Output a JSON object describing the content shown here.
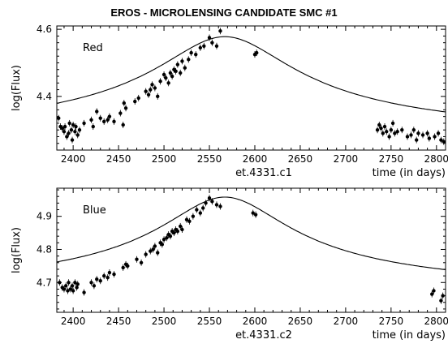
{
  "title": "EROS  -  MICROLENSING CANDIDATE SMC #1",
  "chart_data": [
    {
      "type": "scatter",
      "panel_label": "Red",
      "subtitle": "et.4331.c1",
      "xlabel": "time (in days)",
      "ylabel": "log(Flux)",
      "xlim": [
        2382,
        2810
      ],
      "ylim": [
        4.24,
        4.61
      ],
      "x_ticks": [
        2400,
        2450,
        2500,
        2550,
        2600,
        2650,
        2700,
        2750,
        2800
      ],
      "y_ticks": [
        4.4,
        4.6
      ],
      "y_tick_labels": [
        "4.4",
        "4.6"
      ],
      "model": {
        "t0": 2567,
        "peak": 4.578,
        "base": 4.26,
        "tau": 75
      },
      "points": [
        [
          2384,
          4.335
        ],
        [
          2386,
          4.31
        ],
        [
          2388,
          4.305
        ],
        [
          2390,
          4.295
        ],
        [
          2391,
          4.31
        ],
        [
          2393,
          4.28
        ],
        [
          2395,
          4.29
        ],
        [
          2396,
          4.32
        ],
        [
          2398,
          4.3
        ],
        [
          2399,
          4.27
        ],
        [
          2400,
          4.315
        ],
        [
          2402,
          4.295
        ],
        [
          2403,
          4.31
        ],
        [
          2405,
          4.285
        ],
        [
          2407,
          4.3
        ],
        [
          2412,
          4.32
        ],
        [
          2420,
          4.33
        ],
        [
          2422,
          4.31
        ],
        [
          2426,
          4.355
        ],
        [
          2430,
          4.335
        ],
        [
          2434,
          4.325
        ],
        [
          2438,
          4.33
        ],
        [
          2440,
          4.34
        ],
        [
          2445,
          4.325
        ],
        [
          2452,
          4.35
        ],
        [
          2455,
          4.315
        ],
        [
          2456,
          4.38
        ],
        [
          2458,
          4.365
        ],
        [
          2468,
          4.385
        ],
        [
          2472,
          4.395
        ],
        [
          2480,
          4.415
        ],
        [
          2483,
          4.405
        ],
        [
          2485,
          4.42
        ],
        [
          2487,
          4.435
        ],
        [
          2490,
          4.425
        ],
        [
          2493,
          4.4
        ],
        [
          2496,
          4.445
        ],
        [
          2500,
          4.465
        ],
        [
          2502,
          4.455
        ],
        [
          2505,
          4.44
        ],
        [
          2507,
          4.47
        ],
        [
          2509,
          4.46
        ],
        [
          2511,
          4.48
        ],
        [
          2513,
          4.475
        ],
        [
          2515,
          4.495
        ],
        [
          2518,
          4.47
        ],
        [
          2520,
          4.505
        ],
        [
          2523,
          4.485
        ],
        [
          2527,
          4.51
        ],
        [
          2530,
          4.53
        ],
        [
          2535,
          4.525
        ],
        [
          2540,
          4.545
        ],
        [
          2544,
          4.55
        ],
        [
          2550,
          4.575
        ],
        [
          2553,
          4.56
        ],
        [
          2558,
          4.55
        ],
        [
          2562,
          4.595
        ],
        [
          2600,
          4.525
        ],
        [
          2602,
          4.53
        ],
        [
          2735,
          4.3
        ],
        [
          2737,
          4.315
        ],
        [
          2739,
          4.305
        ],
        [
          2741,
          4.29
        ],
        [
          2743,
          4.31
        ],
        [
          2745,
          4.295
        ],
        [
          2748,
          4.28
        ],
        [
          2750,
          4.3
        ],
        [
          2752,
          4.32
        ],
        [
          2754,
          4.29
        ],
        [
          2757,
          4.295
        ],
        [
          2762,
          4.3
        ],
        [
          2768,
          4.28
        ],
        [
          2772,
          4.285
        ],
        [
          2775,
          4.3
        ],
        [
          2778,
          4.27
        ],
        [
          2780,
          4.29
        ],
        [
          2785,
          4.285
        ],
        [
          2790,
          4.29
        ],
        [
          2792,
          4.275
        ],
        [
          2798,
          4.28
        ],
        [
          2802,
          4.29
        ],
        [
          2805,
          4.27
        ],
        [
          2808,
          4.265
        ]
      ]
    },
    {
      "type": "scatter",
      "panel_label": "Blue",
      "subtitle": "et.4331.c2",
      "xlabel": "time (in days)",
      "ylabel": "log(Flux)",
      "xlim": [
        2382,
        2810
      ],
      "ylim": [
        4.61,
        4.985
      ],
      "x_ticks": [
        2400,
        2450,
        2500,
        2550,
        2600,
        2650,
        2700,
        2750,
        2800
      ],
      "y_ticks": [
        4.7,
        4.8,
        4.9
      ],
      "y_tick_labels": [
        "4.7",
        "4.8",
        "4.9"
      ],
      "model": {
        "t0": 2567,
        "peak": 4.958,
        "base": 4.655,
        "tau": 70
      },
      "points": [
        [
          2385,
          4.7
        ],
        [
          2388,
          4.685
        ],
        [
          2390,
          4.68
        ],
        [
          2392,
          4.69
        ],
        [
          2394,
          4.675
        ],
        [
          2395,
          4.7
        ],
        [
          2397,
          4.68
        ],
        [
          2399,
          4.69
        ],
        [
          2400,
          4.675
        ],
        [
          2402,
          4.7
        ],
        [
          2404,
          4.685
        ],
        [
          2405,
          4.695
        ],
        [
          2412,
          4.67
        ],
        [
          2420,
          4.7
        ],
        [
          2423,
          4.69
        ],
        [
          2426,
          4.71
        ],
        [
          2430,
          4.705
        ],
        [
          2434,
          4.72
        ],
        [
          2438,
          4.715
        ],
        [
          2440,
          4.73
        ],
        [
          2445,
          4.725
        ],
        [
          2455,
          4.745
        ],
        [
          2458,
          4.755
        ],
        [
          2460,
          4.75
        ],
        [
          2470,
          4.77
        ],
        [
          2475,
          4.76
        ],
        [
          2480,
          4.785
        ],
        [
          2485,
          4.795
        ],
        [
          2488,
          4.8
        ],
        [
          2490,
          4.81
        ],
        [
          2493,
          4.79
        ],
        [
          2496,
          4.82
        ],
        [
          2498,
          4.815
        ],
        [
          2500,
          4.83
        ],
        [
          2503,
          4.835
        ],
        [
          2505,
          4.845
        ],
        [
          2507,
          4.84
        ],
        [
          2509,
          4.855
        ],
        [
          2511,
          4.85
        ],
        [
          2513,
          4.86
        ],
        [
          2515,
          4.855
        ],
        [
          2518,
          4.87
        ],
        [
          2520,
          4.86
        ],
        [
          2525,
          4.89
        ],
        [
          2528,
          4.885
        ],
        [
          2532,
          4.9
        ],
        [
          2536,
          4.92
        ],
        [
          2540,
          4.91
        ],
        [
          2543,
          4.925
        ],
        [
          2546,
          4.94
        ],
        [
          2550,
          4.955
        ],
        [
          2553,
          4.945
        ],
        [
          2558,
          4.935
        ],
        [
          2562,
          4.93
        ],
        [
          2598,
          4.91
        ],
        [
          2601,
          4.905
        ],
        [
          2795,
          4.665
        ],
        [
          2797,
          4.675
        ],
        [
          2805,
          4.645
        ],
        [
          2807,
          4.66
        ]
      ]
    }
  ]
}
